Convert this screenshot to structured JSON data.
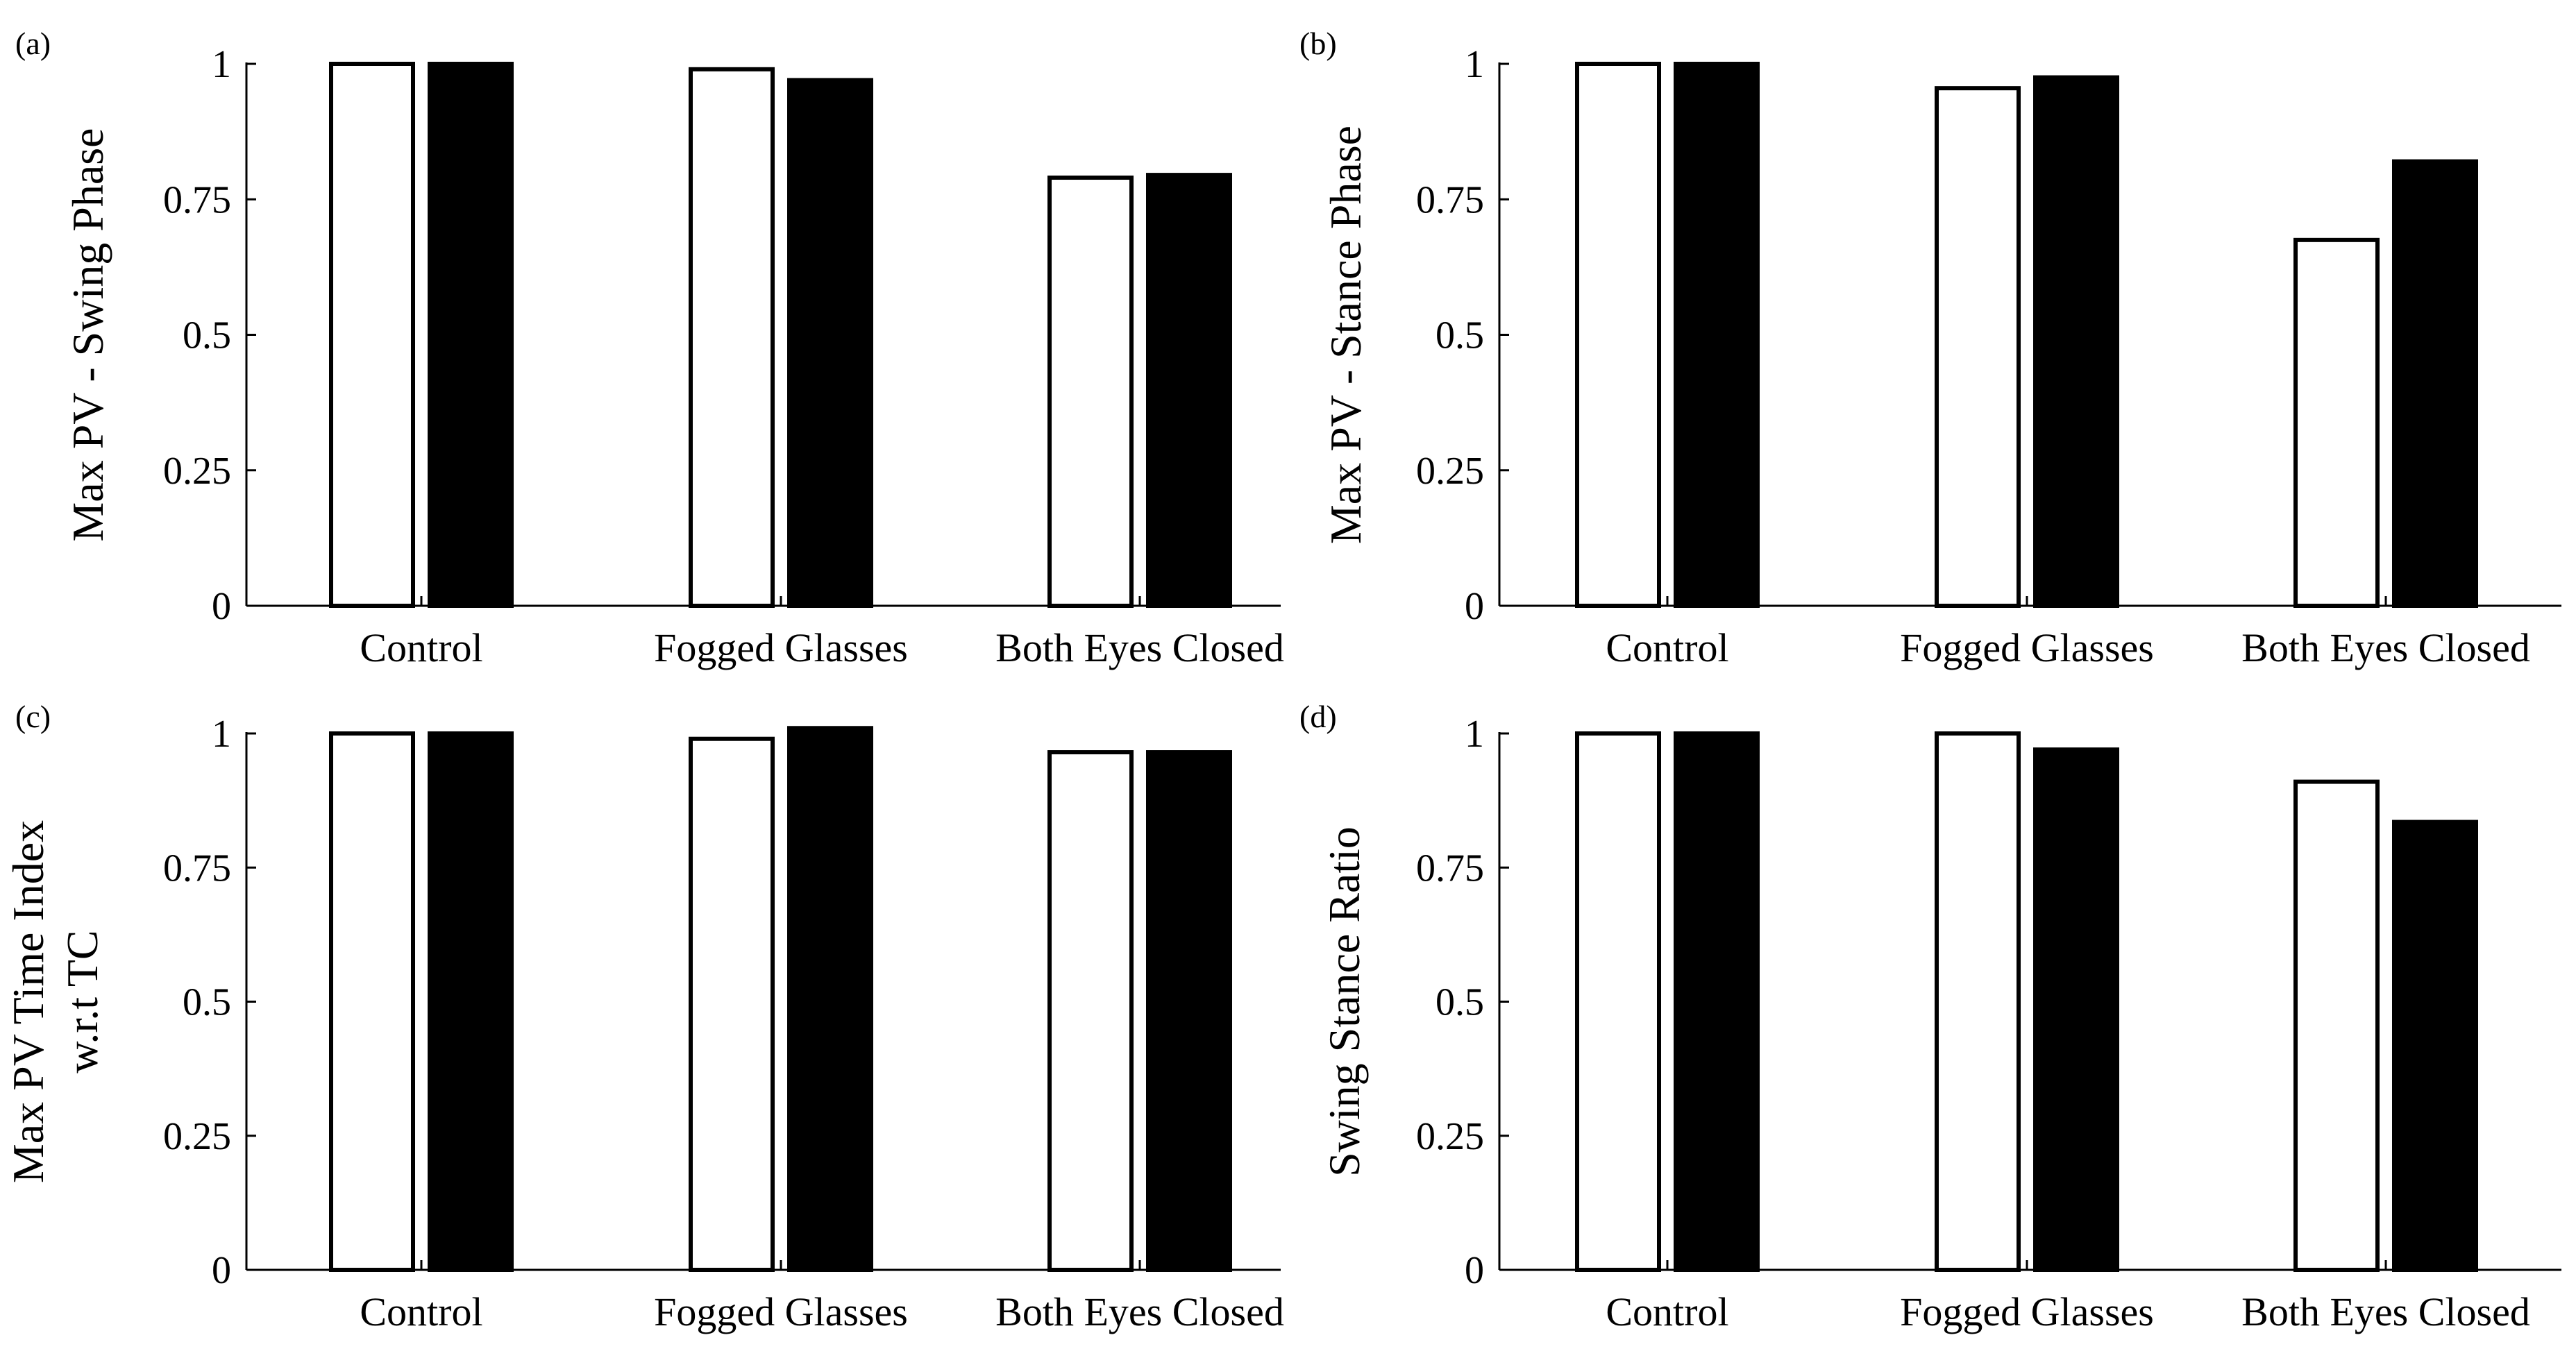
{
  "figure": {
    "colors": {
      "open_bar": "#ffffff",
      "filled_bar": "#000000",
      "stroke": "#000000",
      "background": "#ffffff"
    }
  },
  "chart_data": [
    {
      "panel": "(a)",
      "type": "bar",
      "ylabel": [
        "Max PV - Swing Phase"
      ],
      "categories": [
        "Control",
        "Fogged Glasses",
        "Both Eyes Closed"
      ],
      "yticks": [
        "0",
        "0.25",
        "0.5",
        "0.75",
        "1"
      ],
      "ylim": [
        0,
        1
      ],
      "series": [
        {
          "name": "open",
          "values": [
            1.0,
            0.99,
            0.79
          ]
        },
        {
          "name": "filled",
          "values": [
            1.0,
            0.97,
            0.795
          ]
        }
      ]
    },
    {
      "panel": "(b)",
      "type": "bar",
      "ylabel": [
        "Max PV - Stance Phase"
      ],
      "categories": [
        "Control",
        "Fogged Glasses",
        "Both Eyes Closed"
      ],
      "yticks": [
        "0",
        "0.25",
        "0.5",
        "0.75",
        "1"
      ],
      "ylim": [
        0,
        1
      ],
      "series": [
        {
          "name": "open",
          "values": [
            1.0,
            0.955,
            0.675
          ]
        },
        {
          "name": "filled",
          "values": [
            1.0,
            0.975,
            0.82
          ]
        }
      ]
    },
    {
      "panel": "(c)",
      "type": "bar",
      "ylabel": [
        "Max PV Time Index",
        "w.r.t TC"
      ],
      "categories": [
        "Control",
        "Fogged Glasses",
        "Both Eyes Closed"
      ],
      "yticks": [
        "0",
        "0.25",
        "0.5",
        "0.75",
        "1"
      ],
      "ylim": [
        0,
        1
      ],
      "series": [
        {
          "name": "open",
          "values": [
            1.0,
            0.99,
            0.965
          ]
        },
        {
          "name": "filled",
          "values": [
            1.0,
            1.01,
            0.965
          ]
        }
      ]
    },
    {
      "panel": "(d)",
      "type": "bar",
      "ylabel": [
        "Swing Stance Ratio"
      ],
      "categories": [
        "Control",
        "Fogged Glasses",
        "Both Eyes Closed"
      ],
      "yticks": [
        "0",
        "0.25",
        "0.5",
        "0.75",
        "1"
      ],
      "ylim": [
        0,
        1
      ],
      "series": [
        {
          "name": "open",
          "values": [
            1.0,
            1.0,
            0.91
          ]
        },
        {
          "name": "filled",
          "values": [
            1.0,
            0.97,
            0.835
          ]
        }
      ]
    }
  ]
}
